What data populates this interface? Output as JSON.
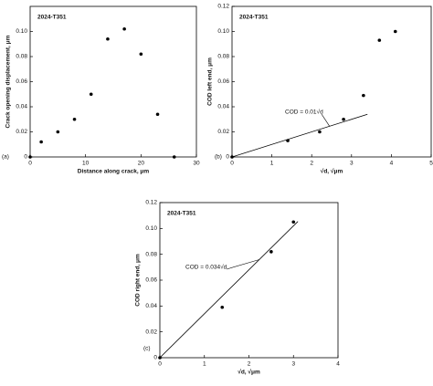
{
  "chart_data": [
    {
      "type": "scatter",
      "panel": "(a)",
      "title": "2024-T351",
      "x_label": "Distance along crack, μm",
      "y_label": "Crack opening displacement, μm",
      "x": [
        0,
        2,
        5,
        8,
        11,
        14,
        17,
        20,
        23,
        26
      ],
      "values": [
        0,
        0.012,
        0.02,
        0.03,
        0.05,
        0.094,
        0.102,
        0.082,
        0.034,
        0
      ],
      "color": "#000000",
      "xlim": [
        0,
        30
      ],
      "xticks": [
        0,
        10,
        20,
        30
      ],
      "ylim": [
        0,
        0.12
      ],
      "yticks": [
        0,
        0.02,
        0.04,
        0.06,
        0.08,
        {
          "value": 0.1,
          "label": "0.10"
        }
      ]
    },
    {
      "type": "scatter",
      "panel": "(b)",
      "title": "2024-T351",
      "x_label": "√d, √μm",
      "y_label": "COD left end, μm",
      "x": [
        0,
        1.4,
        2.2,
        2.8,
        3.3,
        3.7,
        4.1
      ],
      "values": [
        0,
        0.013,
        0.02,
        0.03,
        0.049,
        0.093,
        0.1
      ],
      "color": "#000000",
      "xlim": [
        0,
        5
      ],
      "xticks": [
        0,
        1,
        2,
        3,
        4,
        5
      ],
      "ylim": [
        0,
        0.12
      ],
      "yticks": [
        0,
        0.02,
        0.04,
        0.06,
        0.08,
        {
          "value": 0.1,
          "label": "0.10"
        },
        0.12
      ],
      "fit_line": {
        "x": [
          0,
          3.4
        ],
        "values": [
          0,
          0.034
        ]
      },
      "annotation": "COD = 0.01√d"
    },
    {
      "type": "scatter",
      "panel": "(c)",
      "title": "2024-T351",
      "x_label": "√d, √μm",
      "y_label": "COD right end, μm",
      "x": [
        0,
        1.4,
        2.5,
        3.0
      ],
      "values": [
        0,
        0.039,
        0.082,
        0.105
      ],
      "color": "#000000",
      "xlim": [
        0,
        4
      ],
      "xticks": [
        0,
        1,
        2,
        3,
        4
      ],
      "ylim": [
        0,
        0.12
      ],
      "yticks": [
        0,
        0.02,
        0.04,
        0.06,
        0.08,
        {
          "value": 0.1,
          "label": "0.10"
        },
        0.12
      ],
      "fit_line": {
        "x": [
          0,
          3.1
        ],
        "values": [
          0,
          0.1054
        ]
      },
      "annotation": "COD = 0.034√d"
    }
  ]
}
